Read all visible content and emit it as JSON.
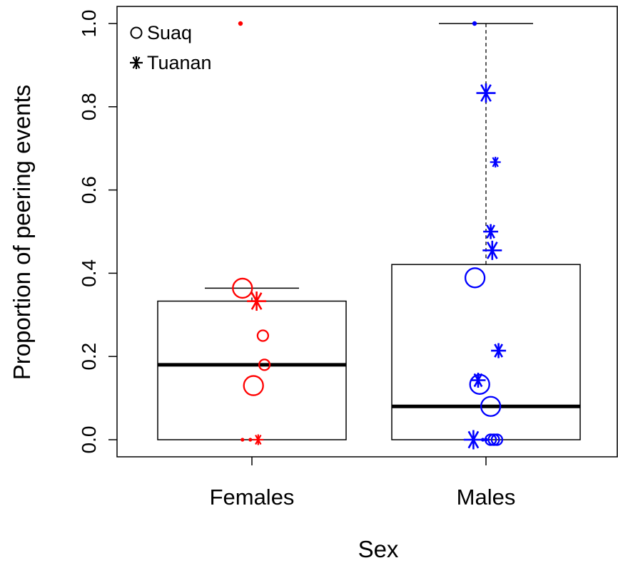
{
  "chart_data": {
    "type": "box",
    "xlabel": "Sex",
    "ylabel": "Proportion of peering events",
    "ylim": [
      0,
      1
    ],
    "yticks": [
      "0.0",
      "0.2",
      "0.4",
      "0.6",
      "0.8",
      "1.0"
    ],
    "ytick_values": [
      0,
      0.2,
      0.4,
      0.6,
      0.8,
      1.0
    ],
    "categories": [
      "Females",
      "Males"
    ],
    "colors": {
      "Females": "#ff0000",
      "Males": "#0000ff"
    },
    "legend": {
      "position": "top-left",
      "entries": [
        {
          "label": "Suaq",
          "marker": "circle"
        },
        {
          "label": "Tuanan",
          "marker": "asterisk"
        }
      ]
    },
    "boxes": [
      {
        "category": "Females",
        "whisker_low": 0.0,
        "q1": 0.0,
        "median": 0.18,
        "q3": 0.333,
        "whisker_high": 0.364,
        "outliers": [
          1.0
        ]
      },
      {
        "category": "Males",
        "whisker_low": 0.0,
        "q1": 0.0,
        "median": 0.08,
        "q3": 0.421,
        "whisker_high": 1.0,
        "outliers": [
          1.0
        ]
      }
    ],
    "points": [
      {
        "group": "Females",
        "site": "Suaq",
        "y": 0.364,
        "jitter": -0.06,
        "size": "large"
      },
      {
        "group": "Females",
        "site": "Tuanan",
        "y": 0.333,
        "jitter": 0.03,
        "size": "large"
      },
      {
        "group": "Females",
        "site": "Suaq",
        "y": 0.25,
        "jitter": 0.07,
        "size": "small"
      },
      {
        "group": "Females",
        "site": "Suaq",
        "y": 0.18,
        "jitter": 0.08,
        "size": "small"
      },
      {
        "group": "Females",
        "site": "Suaq",
        "y": 0.13,
        "jitter": 0.01,
        "size": "large"
      },
      {
        "group": "Females",
        "site": "Suaq",
        "y": 0.0,
        "jitter": -0.06,
        "size": "tiny"
      },
      {
        "group": "Females",
        "site": "Suaq",
        "y": 0.0,
        "jitter": -0.01,
        "size": "tiny"
      },
      {
        "group": "Females",
        "site": "Tuanan",
        "y": 0.0,
        "jitter": 0.04,
        "size": "small"
      },
      {
        "group": "Males",
        "site": "Suaq",
        "y": 0.389,
        "jitter": -0.07,
        "size": "large"
      },
      {
        "group": "Males",
        "site": "Tuanan",
        "y": 0.833,
        "jitter": 0.0,
        "size": "large"
      },
      {
        "group": "Males",
        "site": "Tuanan",
        "y": 0.667,
        "jitter": 0.06,
        "size": "small"
      },
      {
        "group": "Males",
        "site": "Tuanan",
        "y": 0.5,
        "jitter": 0.03,
        "size": "medium"
      },
      {
        "group": "Males",
        "site": "Tuanan",
        "y": 0.455,
        "jitter": 0.04,
        "size": "large"
      },
      {
        "group": "Males",
        "site": "Tuanan",
        "y": 0.214,
        "jitter": 0.08,
        "size": "medium"
      },
      {
        "group": "Males",
        "site": "Suaq",
        "y": 0.133,
        "jitter": -0.04,
        "size": "large"
      },
      {
        "group": "Males",
        "site": "Tuanan",
        "y": 0.143,
        "jitter": -0.05,
        "size": "medium"
      },
      {
        "group": "Males",
        "site": "Suaq",
        "y": 0.08,
        "jitter": 0.03,
        "size": "large"
      },
      {
        "group": "Males",
        "site": "Tuanan",
        "y": 0.0,
        "jitter": -0.08,
        "size": "large"
      },
      {
        "group": "Males",
        "site": "Suaq",
        "y": 0.0,
        "jitter": -0.02,
        "size": "tiny"
      },
      {
        "group": "Males",
        "site": "Suaq",
        "y": 0.0,
        "jitter": 0.0,
        "size": "tiny"
      },
      {
        "group": "Males",
        "site": "Suaq",
        "y": 0.0,
        "jitter": 0.03,
        "size": "small"
      },
      {
        "group": "Males",
        "site": "Suaq",
        "y": 0.0,
        "jitter": 0.05,
        "size": "small"
      },
      {
        "group": "Males",
        "site": "Suaq",
        "y": 0.0,
        "jitter": 0.07,
        "size": "small"
      }
    ]
  }
}
